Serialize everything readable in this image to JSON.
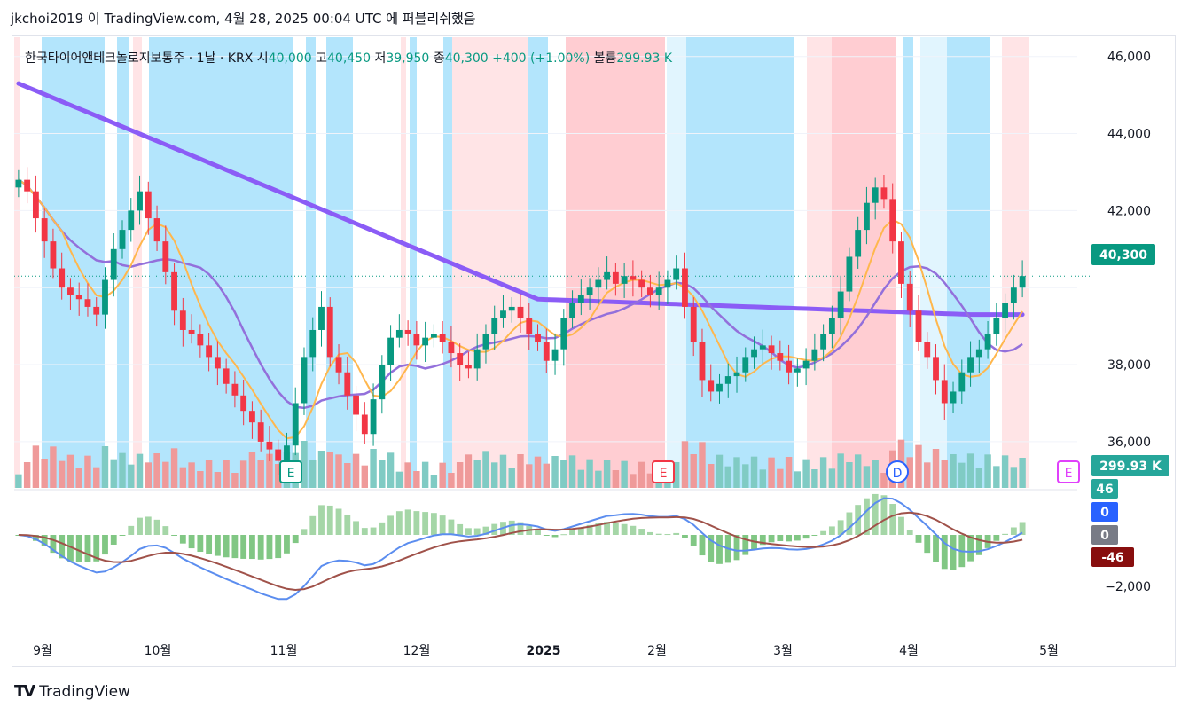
{
  "header": {
    "text": "jkchoi2019 이 TradingView.com, 4월 28, 2025 00:04 UTC 에 퍼블리쉬했음"
  },
  "legend": {
    "symbol": "한국타이어앤테크놀로지보통주 · 1날 · KRX",
    "open_label": "시",
    "open": "40,000",
    "high_label": "고",
    "high": "40,450",
    "low_label": "저",
    "low": "39,950",
    "close_label": "종",
    "close": "40,300",
    "change": "+400 (+1.00%)",
    "volume_label": "볼륨",
    "volume": "299.93 K"
  },
  "footer": {
    "logo": "TV",
    "brand": "TradingView"
  },
  "colors": {
    "up": "#089981",
    "down": "#f23645",
    "ma_long": "#8b5cf6",
    "ma_mid": "#9370db",
    "ma_short": "#ffb74d",
    "macd": "#5b8def",
    "signal": "#a0524a"
  },
  "chart_data": {
    "type": "candlestick",
    "price_axis": {
      "ticks": [
        "46,000",
        "44,000",
        "42,000",
        "38,000",
        "36,000"
      ],
      "ylim": [
        34800,
        46500
      ]
    },
    "x_tick_labels": [
      "9월",
      "10월",
      "11월",
      "12월",
      "2025",
      "2월",
      "3월",
      "4월",
      "5월"
    ],
    "last_price_label": "40,300",
    "volume_label": "299.93 K",
    "event_markers": [
      "E",
      "E",
      "D",
      "E"
    ],
    "macd_axis": {
      "ticks": [
        "46",
        "0",
        "0",
        "-46",
        "−2,000"
      ]
    },
    "close_series": [
      42800,
      42500,
      41800,
      41200,
      40500,
      40000,
      39800,
      39700,
      39500,
      39300,
      40200,
      41000,
      41500,
      42000,
      42500,
      41800,
      41200,
      40400,
      39400,
      38900,
      38800,
      38500,
      38200,
      37900,
      37500,
      37200,
      36800,
      36500,
      36000,
      35800,
      35500,
      35900,
      37000,
      38200,
      38900,
      39500,
      38200,
      37800,
      37200,
      36700,
      36200,
      37100,
      38000,
      38700,
      38900,
      38800,
      38500,
      38700,
      38800,
      38600,
      38300,
      38000,
      37900,
      38400,
      38800,
      39200,
      39400,
      39500,
      39200,
      38800,
      38600,
      38100,
      38400,
      39200,
      39600,
      39800,
      40000,
      40200,
      40400,
      40100,
      40300,
      40200,
      40000,
      39800,
      40000,
      40200,
      40500,
      39500,
      38600,
      37600,
      37300,
      37500,
      37700,
      37800,
      38200,
      38400,
      38500,
      38300,
      38100,
      37800,
      37900,
      38100,
      38400,
      38800,
      39200,
      39900,
      40800,
      41500,
      42200,
      42600,
      42300,
      41200,
      40100,
      39400,
      38600,
      38200,
      37600,
      37000,
      37300,
      37800,
      38200,
      38400,
      38800,
      39200,
      39600,
      40000,
      40300
    ]
  }
}
